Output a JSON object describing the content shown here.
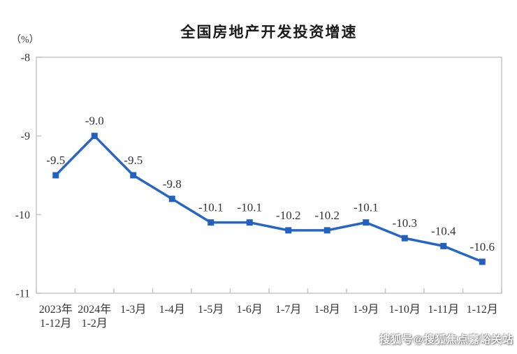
{
  "title": "全国房地产开发投资增速",
  "y_axis_unit": "（%）",
  "watermark": "搜狐号@搜狐焦点嘉峪关站",
  "colors": {
    "line": "#2766c4",
    "marker": "#2261bd",
    "text": "#333333",
    "title": "#1a1a1a",
    "border": "#c6c6c6"
  },
  "chart_data": {
    "type": "line",
    "title": "全国房地产开发投资增速",
    "ylabel": "（%）",
    "categories": [
      [
        "2023年",
        "1-12月"
      ],
      [
        "2024年",
        "1-2月"
      ],
      [
        "1-3月"
      ],
      [
        "1-4月"
      ],
      [
        "1-5月"
      ],
      [
        "1-6月"
      ],
      [
        "1-7月"
      ],
      [
        "1-8月"
      ],
      [
        "1-9月"
      ],
      [
        "1-10月"
      ],
      [
        "1-11月"
      ],
      [
        "1-12月"
      ]
    ],
    "values": [
      -9.5,
      -9.0,
      -9.5,
      -9.8,
      -10.1,
      -10.1,
      -10.2,
      -10.2,
      -10.1,
      -10.3,
      -10.4,
      -10.6
    ],
    "point_labels": [
      "-9.5",
      "-9.0",
      "-9.5",
      "-9.8",
      "-10.1",
      "-10.1",
      "-10.2",
      "-10.2",
      "-10.1",
      "-10.3",
      "-10.4",
      "-10.6"
    ],
    "ylim": [
      -11,
      -8
    ],
    "yticks": [
      -8,
      -9,
      -10,
      -11
    ],
    "ytick_labels": [
      "-8",
      "-9",
      "-10",
      "-11"
    ],
    "grid": false,
    "legend": null,
    "marker_shape": "square"
  }
}
